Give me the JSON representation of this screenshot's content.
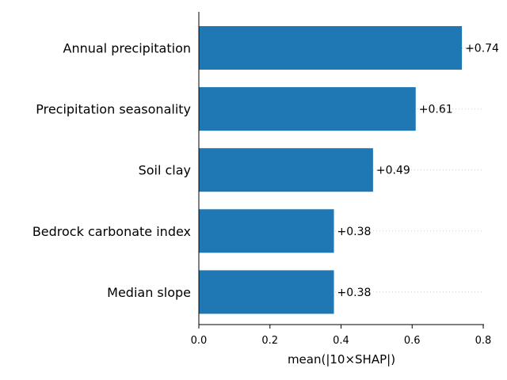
{
  "chart_data": {
    "type": "bar",
    "orientation": "horizontal",
    "categories": [
      "Annual precipitation",
      "Precipitation seasonality",
      "Soil clay",
      "Bedrock carbonate index",
      "Median slope"
    ],
    "values": [
      0.74,
      0.61,
      0.49,
      0.38,
      0.38
    ],
    "data_labels": [
      "+0.74",
      "+0.61",
      "+0.49",
      "+0.38",
      "+0.38"
    ],
    "title": "",
    "xlabel": "mean(|10×SHAP|)",
    "ylabel": "",
    "xlim": [
      0,
      0.8
    ],
    "xticks": [
      0,
      0.2,
      0.4,
      0.6,
      0.8
    ],
    "xtick_labels": [
      "0.0",
      "0.2",
      "0.4",
      "0.6",
      "0.8"
    ],
    "bar_color": "#1f77b4",
    "guide_line_color": "#cccccc",
    "grid": false,
    "legend": "none"
  }
}
